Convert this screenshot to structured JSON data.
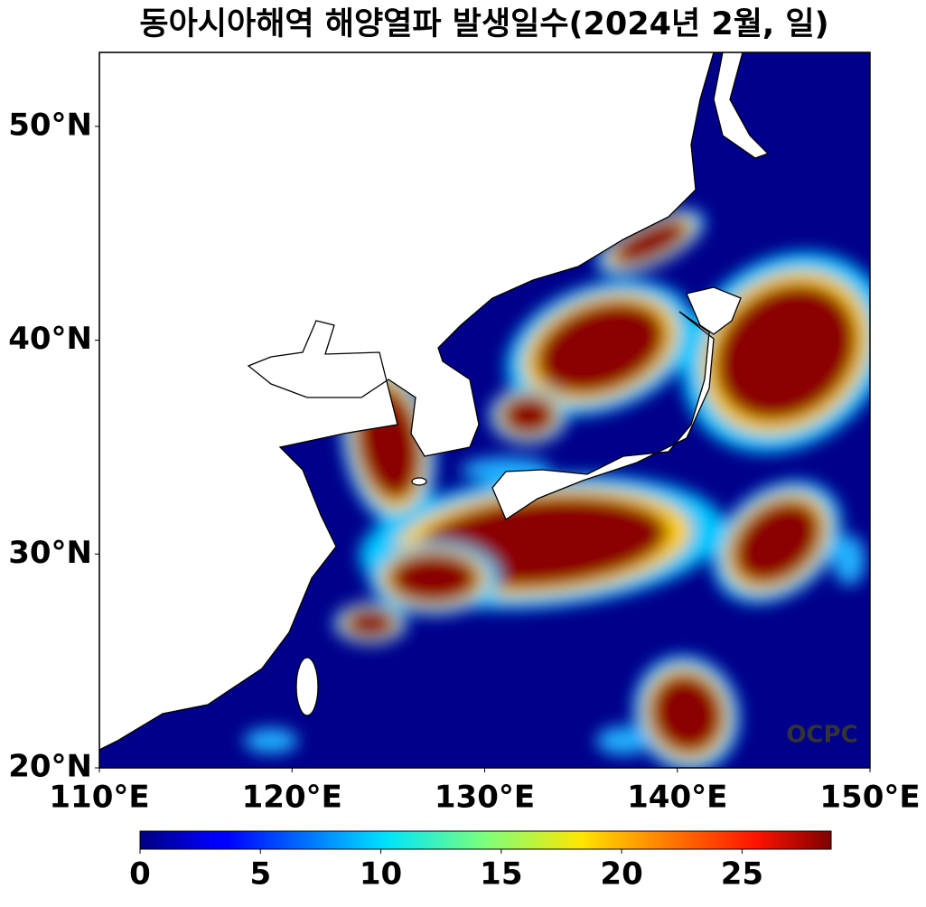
{
  "chart_data": {
    "type": "map",
    "title": "동아시아해역 해양열파 발생일수(2024년 2월, 일)",
    "xlim": [
      110,
      150
    ],
    "ylim": [
      20,
      53.46
    ],
    "xticks": [
      {
        "value": 110,
        "label": "110°E"
      },
      {
        "value": 120,
        "label": "120°E"
      },
      {
        "value": 130,
        "label": "130°E"
      },
      {
        "value": 140,
        "label": "140°E"
      },
      {
        "value": 150,
        "label": "150°E"
      }
    ],
    "yticks": [
      {
        "value": 20,
        "label": "20°N"
      },
      {
        "value": 30,
        "label": "30°N"
      },
      {
        "value": 40,
        "label": "40°N"
      },
      {
        "value": 50,
        "label": "50°N"
      }
    ],
    "colormap": "jet",
    "clim": [
      0,
      28.7
    ],
    "cticks": [
      0,
      5,
      10,
      15,
      20,
      25
    ],
    "watermark": "OCPC"
  }
}
